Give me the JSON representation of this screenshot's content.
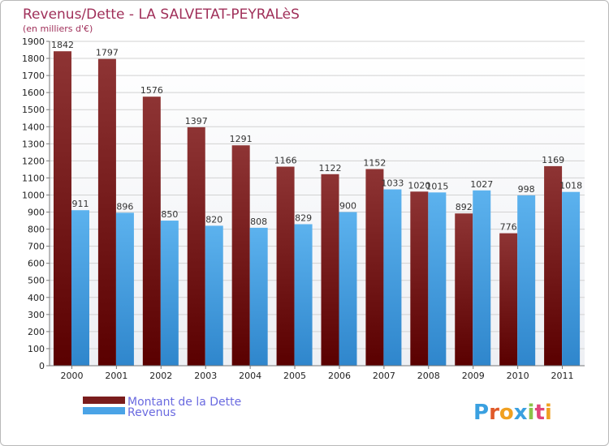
{
  "chart_data": {
    "type": "bar",
    "title": "Revenus/Dette - LA SALVETAT-PEYRALèS",
    "subtitle": "(en milliers d'€)",
    "categories": [
      "2000",
      "2001",
      "2002",
      "2003",
      "2004",
      "2005",
      "2006",
      "2007",
      "2008",
      "2009",
      "2010",
      "2011"
    ],
    "series": [
      {
        "name": "Montant de la Dette",
        "color": "#7a1c1c",
        "values": [
          1842,
          1797,
          1576,
          1397,
          1291,
          1166,
          1122,
          1152,
          1020,
          892,
          776,
          1169
        ]
      },
      {
        "name": "Revenus",
        "color": "#4aa3e6",
        "values": [
          911,
          896,
          850,
          820,
          808,
          829,
          900,
          1033,
          1015,
          1027,
          998,
          1018
        ]
      }
    ],
    "ylim": [
      0,
      1900
    ],
    "yticks": [
      0,
      100,
      200,
      300,
      400,
      500,
      600,
      700,
      800,
      900,
      1000,
      1100,
      1200,
      1300,
      1400,
      1500,
      1600,
      1700,
      1800,
      1900
    ],
    "grid": true,
    "legend": "bottom-left"
  },
  "logo": {
    "text": "Proxiti",
    "letters": [
      "P",
      "r",
      "o",
      "x",
      "i",
      "t",
      "i"
    ],
    "colors": [
      "#3aa0e0",
      "#e05a2a",
      "#f0a020",
      "#3aa0e0",
      "#8bc34a",
      "#e0467a",
      "#f0a020"
    ]
  }
}
